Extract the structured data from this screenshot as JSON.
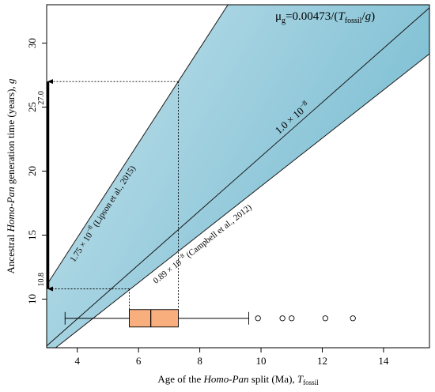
{
  "chart_data": {
    "type": "line",
    "title": "",
    "xlabel": {
      "prefix": "Age of the ",
      "italic": "Homo-Pan",
      "middle": " split (Ma), ",
      "symbol": "T",
      "subscript": "fossil"
    },
    "ylabel": {
      "prefix": "Ancestral ",
      "italic": "Homo-Pan",
      "middle": " generation time (years), ",
      "symbol": "g"
    },
    "xlim": [
      3.0,
      15.5
    ],
    "ylim": [
      6.2,
      33.0
    ],
    "xticks": [
      "4",
      "6",
      "8",
      "10",
      "12",
      "14"
    ],
    "yticks": [
      "10",
      "15",
      "20",
      "25",
      "30"
    ],
    "equation": {
      "mu": "μ",
      "mu_sub": "g",
      "eq": "=0.00473/(",
      "T": "T",
      "T_sub": "fossil",
      "rest": "/",
      "g": "g",
      "close": ")"
    },
    "series": [
      {
        "name": "1.75 × 10⁻⁸ (Lipson et al., 2015)",
        "label_pre": "1.75 × 10",
        "label_exp": "−8",
        "label_post": " (Lipson et al., 2015)",
        "slope": 3.7,
        "line_color": "#1a1a1a"
      },
      {
        "name": "1.0 × 10⁻⁸",
        "label_pre": "1.0 × 10",
        "label_exp": "−8",
        "label_post": "",
        "slope": 2.114,
        "line_color": "#1a1a1a"
      },
      {
        "name": "0.89 × 10⁻⁸ (Campbell et al., 2012)",
        "label_pre": "0.89 × 10",
        "label_exp": "−8",
        "label_post": " (Campbell et al., 2012)",
        "slope": 1.8817,
        "line_color": "#1a1a1a"
      }
    ],
    "band": {
      "upper_slope": 3.7,
      "lower_slope": 1.8817,
      "color_light": "#e9f4f8",
      "color_dark": "#5fb0c9"
    },
    "projection": {
      "x_low": 5.7,
      "x_high": 7.3,
      "y_low": 10.8,
      "y_high": 27.0,
      "y_low_label": "10.8",
      "y_high_label": "27.0"
    },
    "boxplot": {
      "y": 8.5,
      "whisker_low": 3.6,
      "q1": 5.7,
      "median": 6.4,
      "q3": 7.3,
      "whisker_high": 9.6,
      "outliers": [
        9.9,
        10.7,
        11.0,
        12.1,
        13.0
      ],
      "fill": "#f9ae7e"
    },
    "grid": false
  }
}
